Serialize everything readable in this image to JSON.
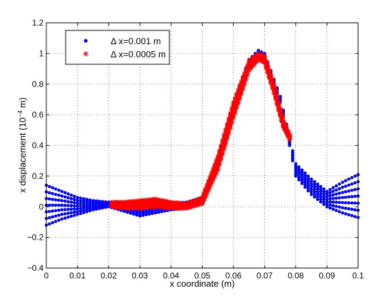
{
  "chart_data": {
    "type": "scatter",
    "title": "",
    "xlabel": "x coordinate (m)",
    "ylabel_main": "x displacement (10",
    "ylabel_exp": "−4",
    "ylabel_tail": " m)",
    "xlim": [
      0,
      0.1
    ],
    "ylim": [
      -0.4,
      1.2
    ],
    "x_ticks": [
      0,
      0.01,
      0.02,
      0.03,
      0.04,
      0.05,
      0.06,
      0.07,
      0.08,
      0.09,
      0.1
    ],
    "x_tick_labels": [
      "0",
      "0.01",
      "0.02",
      "0.03",
      "0.04",
      "0.05",
      "0.06",
      "0.07",
      "0.08",
      "0.09",
      "0.1"
    ],
    "y_ticks": [
      -0.4,
      -0.2,
      0,
      0.2,
      0.4,
      0.6,
      0.8,
      1.0,
      1.2
    ],
    "y_tick_labels": [
      "−0.4",
      "−0.2",
      "0",
      "0.2",
      "0.4",
      "0.6",
      "0.8",
      "1",
      "1.2"
    ],
    "grid": true,
    "legend_position": "top-left",
    "series": [
      {
        "name": "Δ x=0.001 m",
        "marker": "dot",
        "color": "#0000ff",
        "x_range": [
          0,
          0.1
        ],
        "envelope": {
          "x": [
            0,
            0.005,
            0.01,
            0.015,
            0.02,
            0.025,
            0.03,
            0.035,
            0.04,
            0.045,
            0.05,
            0.055,
            0.06,
            0.065,
            0.068,
            0.07,
            0.075,
            0.078,
            0.08,
            0.085,
            0.09,
            0.095,
            0.1
          ],
          "lower": [
            -0.12,
            -0.08,
            -0.05,
            -0.02,
            0.0,
            -0.03,
            -0.06,
            -0.04,
            -0.02,
            -0.01,
            0.02,
            0.25,
            0.6,
            0.9,
            0.97,
            0.95,
            0.68,
            0.4,
            0.2,
            0.08,
            0.0,
            -0.04,
            -0.07
          ],
          "upper": [
            0.14,
            0.1,
            0.06,
            0.04,
            0.03,
            0.03,
            0.02,
            0.03,
            0.02,
            0.03,
            0.06,
            0.32,
            0.68,
            0.96,
            1.02,
            1.0,
            0.72,
            0.45,
            0.28,
            0.18,
            0.1,
            0.16,
            0.21
          ]
        }
      },
      {
        "name": "Δ x=0.0005 m",
        "marker": "asterisk",
        "color": "#ff0000",
        "x_range": [
          0.021,
          0.078
        ],
        "envelope": {
          "x": [
            0.021,
            0.025,
            0.03,
            0.035,
            0.04,
            0.045,
            0.05,
            0.055,
            0.06,
            0.065,
            0.068,
            0.07,
            0.073,
            0.076,
            0.078
          ],
          "lower": [
            0.0,
            -0.01,
            -0.01,
            0.0,
            -0.01,
            -0.01,
            0.02,
            0.24,
            0.58,
            0.89,
            0.96,
            0.94,
            0.74,
            0.52,
            0.44
          ],
          "upper": [
            0.03,
            0.03,
            0.04,
            0.05,
            0.03,
            0.02,
            0.06,
            0.33,
            0.68,
            0.95,
            1.0,
            0.98,
            0.8,
            0.56,
            0.47
          ]
        }
      }
    ]
  }
}
